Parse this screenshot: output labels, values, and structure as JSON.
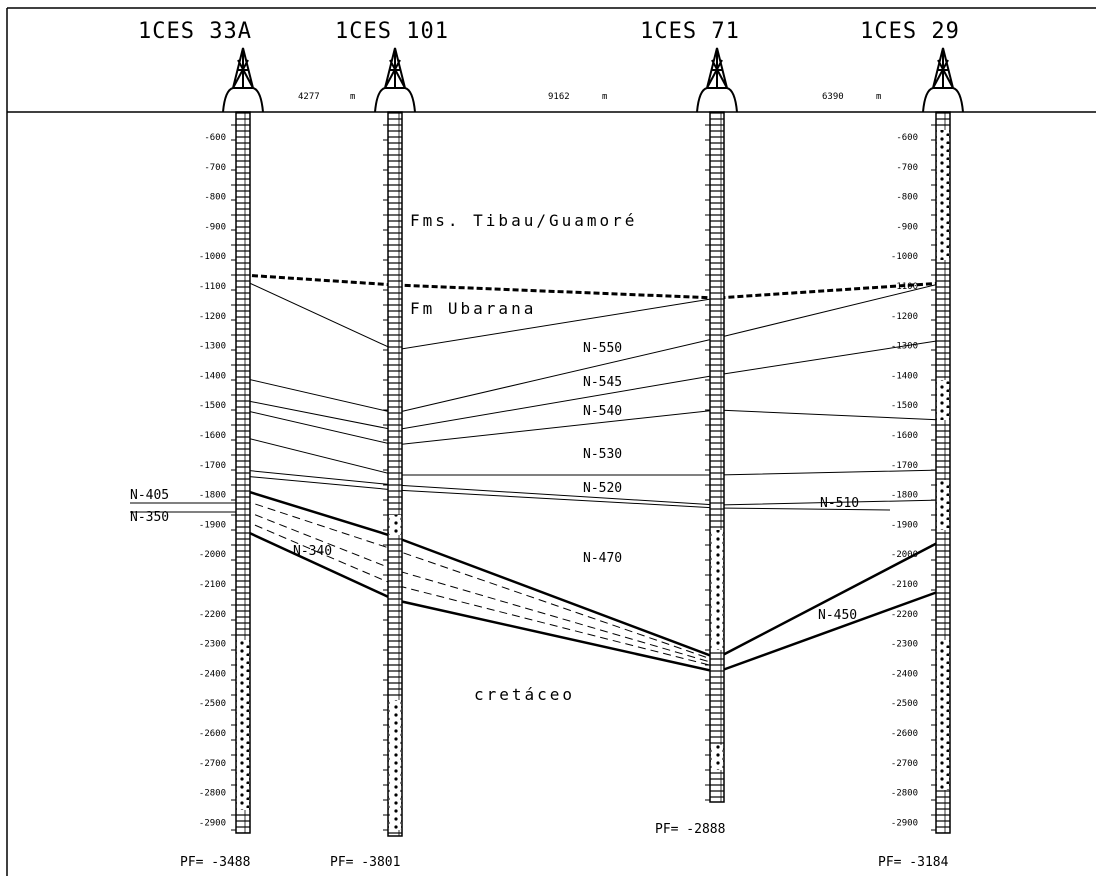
{
  "wells": [
    {
      "name": "1CES 33A",
      "pf": "PF= -3488"
    },
    {
      "name": "1CES 101",
      "pf": "PF= -3801"
    },
    {
      "name": "1CES 71",
      "pf": "PF= -2888"
    },
    {
      "name": "1CES 29",
      "pf": "PF= -3184"
    }
  ],
  "distances": [
    {
      "value": "4277",
      "unit": "m"
    },
    {
      "value": "9162",
      "unit": "m"
    },
    {
      "value": "6390",
      "unit": "m"
    }
  ],
  "depth_scale": [
    -600,
    -700,
    -800,
    -900,
    -1000,
    -1100,
    -1200,
    -1300,
    -1400,
    -1500,
    -1600,
    -1700,
    -1800,
    -1900,
    -2000,
    -2100,
    -2200,
    -2300,
    -2400,
    -2500,
    -2600,
    -2700,
    -2800,
    -2900
  ],
  "formations": [
    "Fms. Tibau/Guamoré",
    "Fm Ubarana",
    "cretáceo"
  ],
  "horizons": [
    "N-550",
    "N-545",
    "N-540",
    "N-530",
    "N-520",
    "N-510",
    "N-470",
    "N-450",
    "N-405",
    "N-350",
    "N-340"
  ]
}
